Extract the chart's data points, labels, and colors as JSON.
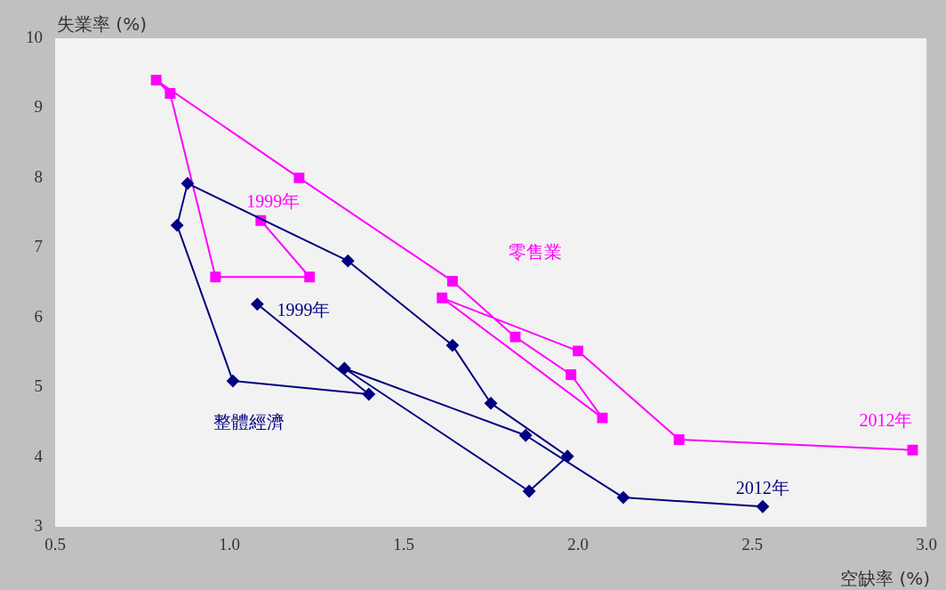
{
  "chart_data": {
    "type": "line",
    "xlabel": "空缺率 (%)",
    "ylabel": "失業率 (%)",
    "xlim": [
      0.5,
      3.0
    ],
    "xticks": [
      {
        "value": 0.5,
        "label": "0.5"
      },
      {
        "value": 1,
        "label": "1.0"
      },
      {
        "value": 1.5,
        "label": "1.5"
      },
      {
        "value": 2,
        "label": "2.0"
      },
      {
        "value": 2.5,
        "label": "2.5"
      },
      {
        "value": 3,
        "label": "3.0"
      }
    ],
    "ylim": [
      3,
      10
    ],
    "yticks": [
      3,
      4,
      5,
      6,
      7,
      8,
      9,
      10
    ],
    "grid": false,
    "legend": false,
    "line_style": "solid",
    "series": [
      {
        "name": "整體經濟",
        "color": "#000080",
        "marker": "diamond",
        "x": [
          1.08,
          1.4,
          1.01,
          0.85,
          0.88,
          1.34,
          1.64,
          1.75,
          1.97,
          1.86,
          1.33,
          1.85,
          2.13,
          2.53
        ],
        "values": [
          6.19,
          4.9,
          5.09,
          7.32,
          7.92,
          6.81,
          5.6,
          4.77,
          4.01,
          3.51,
          5.27,
          4.31,
          3.42,
          3.29
        ]
      },
      {
        "name": "零售業",
        "color": "#ff00ff",
        "marker": "square",
        "x": [
          1.09,
          1.23,
          0.96,
          0.83,
          0.79,
          1.2,
          1.64,
          1.82,
          1.98,
          2.07,
          1.61,
          2.0,
          2.29,
          2.96
        ],
        "values": [
          7.39,
          6.58,
          6.58,
          9.21,
          9.4,
          8.0,
          6.52,
          5.72,
          5.18,
          4.56,
          6.28,
          5.52,
          4.25,
          4.1
        ]
      }
    ],
    "annotations": [
      {
        "text": "1999年",
        "x": 1.08,
        "y": 6.19
      },
      {
        "text": "2012年",
        "x": 2.53,
        "y": 3.29
      },
      {
        "text": "1999年",
        "x": 1.09,
        "y": 7.39
      },
      {
        "text": "2012年",
        "x": 2.96,
        "y": 4.1
      }
    ]
  }
}
